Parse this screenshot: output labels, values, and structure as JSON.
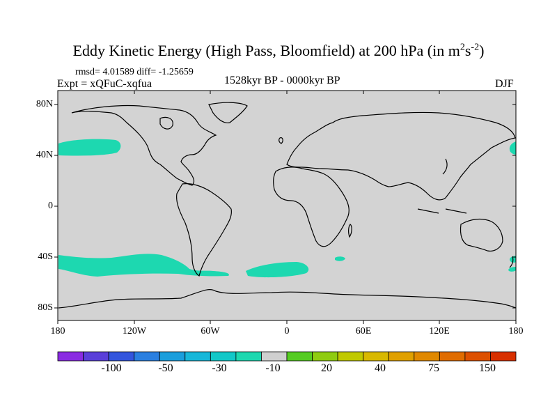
{
  "title": {
    "text": "Eddy Kinetic Energy (High Pass, Bloomfield) at 200 hPa (in m",
    "sup1": "2",
    "mid": "s",
    "sup2": "-2",
    "end": ")"
  },
  "subtitle": {
    "rmsd": "rmsd= 4.01589 diff= -1.25659",
    "expt": "Expt = xQFuC-xqfua",
    "period": "1528kyr BP - 0000kyr BP",
    "season": "DJF"
  },
  "map": {
    "ocean_color": "#d3d3d3",
    "coast_color": "#000000",
    "lat_labels": [
      "80N",
      "40N",
      "0",
      "40S",
      "80S"
    ],
    "lon_labels": [
      "180",
      "120W",
      "60W",
      "0",
      "60E",
      "120E",
      "180"
    ],
    "shaded_regions": [
      "north-pacific-40N",
      "south-pacific-45S",
      "south-atlantic-45S",
      "south-indian-45S",
      "north-pacific-east-40N",
      "southwest-pacific-45S"
    ]
  },
  "colorbar": {
    "colors": [
      "#8a2be2",
      "#5a3fd9",
      "#3355dd",
      "#2a7fe0",
      "#1a9edc",
      "#17b7d9",
      "#12c8c8",
      "#1dd8b0",
      "#cfcfcf",
      "#55cc22",
      "#8fcc11",
      "#c0c900",
      "#d8b800",
      "#e0a000",
      "#e08800",
      "#e06c00",
      "#dd5000",
      "#d83000"
    ],
    "labels": [
      "-100",
      "-50",
      "-30",
      "-10",
      "20",
      "40",
      "75",
      "150"
    ]
  }
}
